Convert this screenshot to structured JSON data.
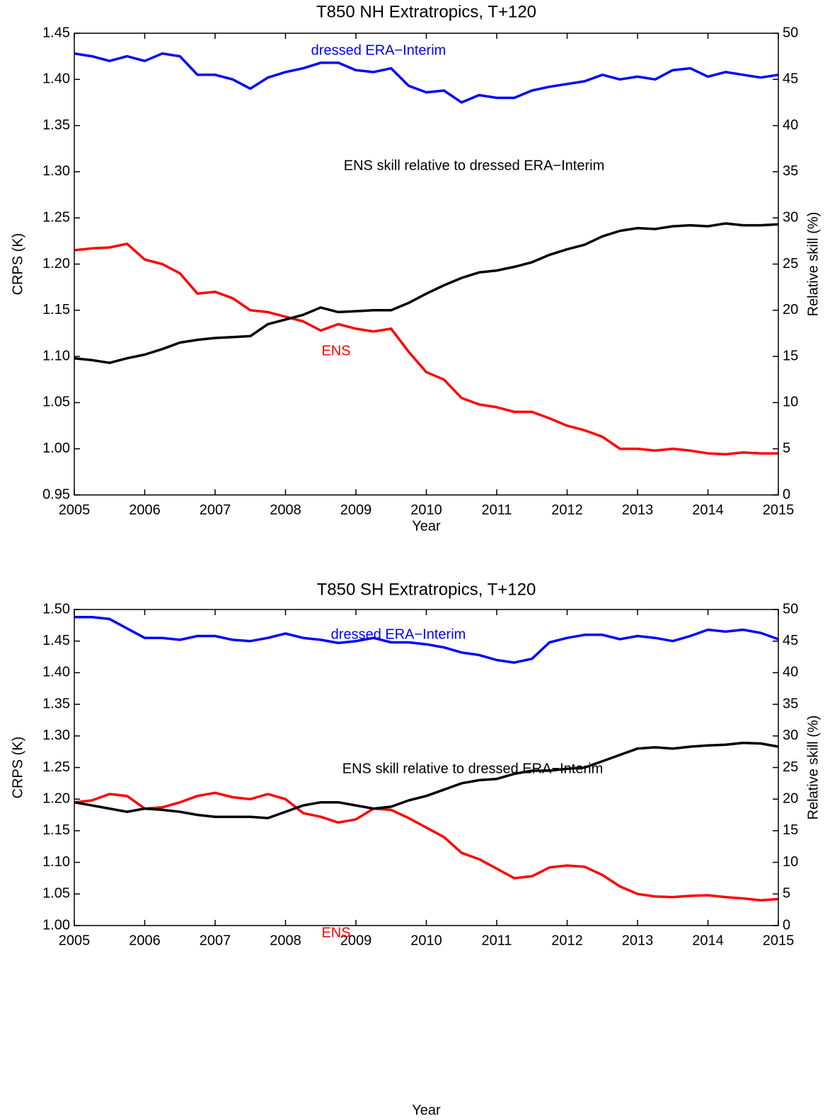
{
  "chart_data": [
    {
      "type": "line",
      "title": "T850 NH Extratropics, T+120",
      "xlabel": "Year",
      "ylabel": "CRPS (K)",
      "y2label": "Relative skill (%)",
      "x": [
        2005,
        2005.25,
        2005.5,
        2005.75,
        2006,
        2006.25,
        2006.5,
        2006.75,
        2007,
        2007.25,
        2007.5,
        2007.75,
        2008,
        2008.25,
        2008.5,
        2008.75,
        2009,
        2009.25,
        2009.5,
        2009.75,
        2010,
        2010.25,
        2010.5,
        2010.75,
        2011,
        2011.25,
        2011.5,
        2011.75,
        2012,
        2012.25,
        2012.5,
        2012.75,
        2013,
        2013.25,
        2013.5,
        2013.75,
        2014,
        2014.25,
        2014.5,
        2014.75,
        2015
      ],
      "xlim": [
        2005,
        2015
      ],
      "xticks": [
        2005,
        2006,
        2007,
        2008,
        2009,
        2010,
        2011,
        2012,
        2013,
        2014,
        2015
      ],
      "ylim": [
        0.95,
        1.45
      ],
      "yticks": [
        0.95,
        {
          "value": 1.0,
          "label": "1.00"
        },
        1.05,
        {
          "value": 1.1,
          "label": "1.10"
        },
        1.15,
        {
          "value": 1.2,
          "label": "1.20"
        },
        1.25,
        {
          "value": 1.3,
          "label": "1.30"
        },
        1.35,
        {
          "value": 1.4,
          "label": "1.40"
        },
        1.45
      ],
      "y2lim": [
        0,
        50
      ],
      "y2ticks": [
        0,
        5,
        10,
        15,
        20,
        25,
        30,
        35,
        40,
        45,
        50
      ],
      "series": [
        {
          "name": "dressed ERA−Interim",
          "color": "#0000ff",
          "values": [
            1.428,
            1.425,
            1.42,
            1.425,
            1.42,
            1.428,
            1.425,
            1.405,
            1.405,
            1.4,
            1.39,
            1.402,
            1.408,
            1.412,
            1.418,
            1.418,
            1.41,
            1.408,
            1.412,
            1.393,
            1.386,
            1.388,
            1.375,
            1.383,
            1.38,
            1.38,
            1.388,
            1.392,
            1.395,
            1.398,
            1.405,
            1.4,
            1.403,
            1.4,
            1.41,
            1.412,
            1.403,
            1.408,
            1.405,
            1.402,
            1.405
          ]
        },
        {
          "name": "ENS",
          "color": "#ff0000",
          "values": [
            1.215,
            1.217,
            1.218,
            1.222,
            1.205,
            1.2,
            1.19,
            1.168,
            1.17,
            1.163,
            1.15,
            1.148,
            1.143,
            1.138,
            1.128,
            1.135,
            1.13,
            1.127,
            1.13,
            1.105,
            1.083,
            1.075,
            1.055,
            1.048,
            1.045,
            1.04,
            1.04,
            1.033,
            1.025,
            1.02,
            1.013,
            1.0,
            1.0,
            0.998,
            1.0,
            0.998,
            0.995,
            0.994,
            0.996,
            0.995,
            0.995
          ]
        },
        {
          "name": "ENS skill relative to dressed ERA−Interim",
          "color": "#000000",
          "axis": "y2",
          "values": [
            14.8,
            14.6,
            14.3,
            14.8,
            15.2,
            15.8,
            16.5,
            16.8,
            17.0,
            17.1,
            17.2,
            18.5,
            19.0,
            19.5,
            20.3,
            19.8,
            19.9,
            20.0,
            20.0,
            20.8,
            21.8,
            22.7,
            23.5,
            24.1,
            24.3,
            24.7,
            25.2,
            26.0,
            26.6,
            27.1,
            28.0,
            28.6,
            28.9,
            28.8,
            29.1,
            29.2,
            29.1,
            29.4,
            29.2,
            29.2,
            29.3
          ]
        }
      ]
    },
    {
      "type": "line",
      "title": "T850 SH Extratropics, T+120",
      "xlabel": "Year",
      "ylabel": "CRPS (K)",
      "y2label": "Relative skill (%)",
      "x": [
        2005,
        2005.25,
        2005.5,
        2005.75,
        2006,
        2006.25,
        2006.5,
        2006.75,
        2007,
        2007.25,
        2007.5,
        2007.75,
        2008,
        2008.25,
        2008.5,
        2008.75,
        2009,
        2009.25,
        2009.5,
        2009.75,
        2010,
        2010.25,
        2010.5,
        2010.75,
        2011,
        2011.25,
        2011.5,
        2011.75,
        2012,
        2012.25,
        2012.5,
        2012.75,
        2013,
        2013.25,
        2013.5,
        2013.75,
        2014,
        2014.25,
        2014.5,
        2014.75,
        2015
      ],
      "xlim": [
        2005,
        2015
      ],
      "xticks": [
        2005,
        2006,
        2007,
        2008,
        2009,
        2010,
        2011,
        2012,
        2013,
        2014,
        2015
      ],
      "ylim": [
        1.0,
        1.5
      ],
      "yticks": [
        {
          "value": 1.0,
          "label": "1.00"
        },
        1.05,
        {
          "value": 1.1,
          "label": "1.10"
        },
        1.15,
        {
          "value": 1.2,
          "label": "1.20"
        },
        1.25,
        {
          "value": 1.3,
          "label": "1.30"
        },
        1.35,
        {
          "value": 1.4,
          "label": "1.40"
        },
        1.45,
        {
          "value": 1.5,
          "label": "1.50"
        }
      ],
      "y2lim": [
        0,
        50
      ],
      "y2ticks": [
        0,
        5,
        10,
        15,
        20,
        25,
        30,
        35,
        40,
        45,
        50
      ],
      "series": [
        {
          "name": "dressed ERA−Interim",
          "color": "#0000ff",
          "values": [
            1.488,
            1.488,
            1.485,
            1.47,
            1.455,
            1.455,
            1.452,
            1.458,
            1.458,
            1.452,
            1.45,
            1.455,
            1.462,
            1.455,
            1.452,
            1.447,
            1.45,
            1.455,
            1.448,
            1.448,
            1.445,
            1.44,
            1.432,
            1.428,
            1.42,
            1.416,
            1.422,
            1.448,
            1.455,
            1.46,
            1.46,
            1.453,
            1.458,
            1.455,
            1.45,
            1.458,
            1.468,
            1.465,
            1.468,
            1.463,
            1.453
          ]
        },
        {
          "name": "ENS",
          "color": "#ff0000",
          "values": [
            1.195,
            1.198,
            1.208,
            1.205,
            1.185,
            1.187,
            1.195,
            1.205,
            1.21,
            1.203,
            1.2,
            1.208,
            1.2,
            1.178,
            1.172,
            1.163,
            1.168,
            1.185,
            1.183,
            1.17,
            1.155,
            1.14,
            1.115,
            1.105,
            1.09,
            1.075,
            1.078,
            1.092,
            1.095,
            1.093,
            1.08,
            1.062,
            1.05,
            1.046,
            1.045,
            1.047,
            1.048,
            1.045,
            1.043,
            1.04,
            1.042
          ]
        },
        {
          "name": "ENS skill relative to dressed ERA−Interim",
          "color": "#000000",
          "axis": "y2",
          "values": [
            19.5,
            19.0,
            18.5,
            18.0,
            18.5,
            18.3,
            18.0,
            17.5,
            17.2,
            17.2,
            17.2,
            17.0,
            18.0,
            19.0,
            19.5,
            19.5,
            19.0,
            18.5,
            18.8,
            19.8,
            20.5,
            21.5,
            22.5,
            23.0,
            23.2,
            24.0,
            24.5,
            24.5,
            24.8,
            25.0,
            26.0,
            27.0,
            28.0,
            28.2,
            28.0,
            28.3,
            28.5,
            28.6,
            28.9,
            28.8,
            28.3
          ]
        }
      ]
    }
  ]
}
